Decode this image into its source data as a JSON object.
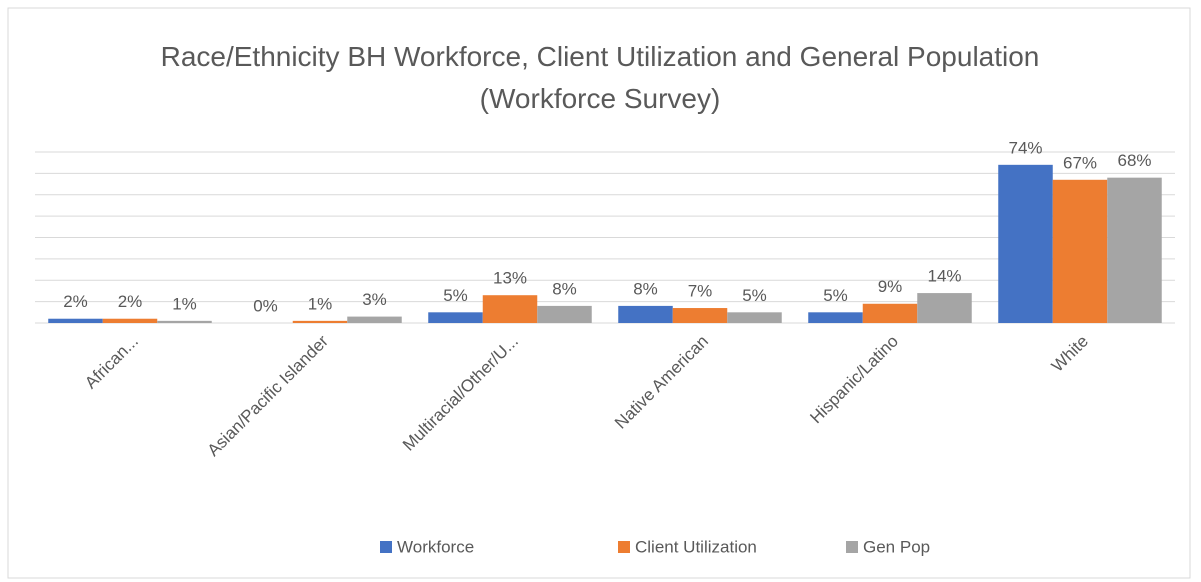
{
  "chart_data": {
    "type": "bar",
    "title": "Race/Ethnicity BH Workforce, Client Utilization and General Population (Workforce Survey)",
    "categories": [
      "African...",
      "Asian/Pacific Islander",
      "Multiracial/Other/U...",
      "Native American",
      "Hispanic/Latino",
      "White"
    ],
    "series": [
      {
        "name": "Workforce",
        "color": "#4472c4",
        "values": [
          2,
          0,
          5,
          8,
          5,
          74
        ],
        "value_labels": [
          "2%",
          "0%",
          "5%",
          "8%",
          "5%",
          "74%"
        ]
      },
      {
        "name": "Client Utilization",
        "color": "#ed7d31",
        "values": [
          2,
          1,
          13,
          7,
          9,
          67
        ],
        "value_labels": [
          "2%",
          "1%",
          "13%",
          "7%",
          "9%",
          "67%"
        ]
      },
      {
        "name": "Gen Pop",
        "color": "#a5a5a5",
        "values": [
          1,
          3,
          8,
          5,
          14,
          68
        ],
        "value_labels": [
          "1%",
          "3%",
          "8%",
          "5%",
          "14%",
          "68%"
        ]
      }
    ],
    "ylim": [
      0,
      80
    ],
    "yticks": [
      0,
      10,
      20,
      30,
      40,
      50,
      60,
      70,
      80
    ],
    "grid": true,
    "legend": "bottom"
  }
}
